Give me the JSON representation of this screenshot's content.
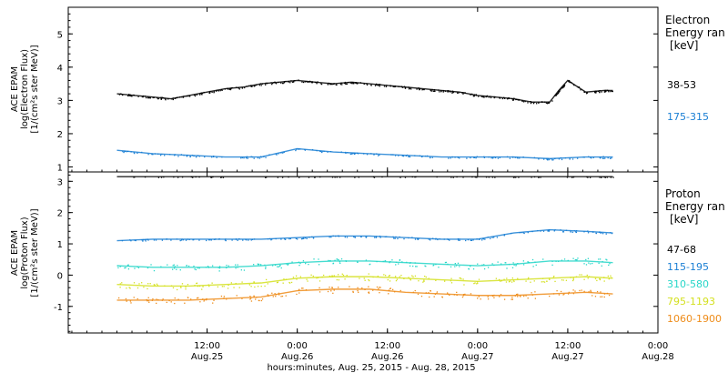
{
  "chart_data": [
    {
      "type": "scatter",
      "instrument_label": "ACE EPAM",
      "ylabel": "log(Electron Flux)",
      "yunits": "[1/(cm²s ster MeV)]",
      "ylim": [
        0.85,
        5.8
      ],
      "yticks": [
        1,
        2,
        3,
        4,
        5
      ],
      "legend_title": [
        "Electron",
        "Energy ran"
      ],
      "legend_units": "[keV]",
      "series": [
        {
          "name": "38-53",
          "color": "#000000",
          "x": [
            0,
            0.1,
            0.2,
            0.3,
            0.4,
            0.5,
            0.6,
            0.7,
            0.8,
            0.9,
            1.0,
            1.1,
            1.2,
            1.3,
            1.4,
            1.5,
            1.6,
            1.7,
            1.8,
            1.9,
            2.0,
            2.1,
            2.2,
            2.3,
            2.4,
            2.45,
            2.5,
            2.6,
            2.7,
            2.75
          ],
          "y": [
            3.2,
            3.15,
            3.1,
            3.05,
            3.15,
            3.25,
            3.35,
            3.4,
            3.5,
            3.55,
            3.6,
            3.55,
            3.5,
            3.55,
            3.5,
            3.45,
            3.4,
            3.35,
            3.3,
            3.25,
            3.15,
            3.1,
            3.05,
            2.95,
            2.95,
            3.3,
            3.6,
            3.25,
            3.3,
            3.3
          ]
        },
        {
          "name": "175-315",
          "color": "#1a7fd4",
          "x": [
            0,
            0.2,
            0.4,
            0.6,
            0.8,
            1.0,
            1.2,
            1.4,
            1.6,
            1.8,
            2.0,
            2.2,
            2.4,
            2.6,
            2.75
          ],
          "y": [
            1.5,
            1.4,
            1.35,
            1.3,
            1.3,
            1.55,
            1.45,
            1.4,
            1.35,
            1.3,
            1.3,
            1.3,
            1.25,
            1.3,
            1.3
          ]
        }
      ]
    },
    {
      "type": "scatter",
      "instrument_label": "ACE EPAM",
      "ylabel": "log(Proton Flux)",
      "yunits": "[1/(cm²s ster MeV)]",
      "ylim": [
        -1.85,
        3.3
      ],
      "yticks": [
        -1,
        0,
        1,
        2,
        3
      ],
      "legend_title": [
        "Proton",
        "Energy ran"
      ],
      "legend_units": "[keV]",
      "series": [
        {
          "name": "47-68",
          "color": "#000000",
          "x": [
            0,
            0.5,
            1.0,
            1.5,
            2.0,
            2.5,
            2.75
          ],
          "y": [
            3.15,
            3.15,
            3.15,
            3.15,
            3.15,
            3.15,
            3.15
          ]
        },
        {
          "name": "115-195",
          "color": "#1a7fd4",
          "x": [
            0,
            0.2,
            0.4,
            0.6,
            0.8,
            1.0,
            1.2,
            1.4,
            1.6,
            1.8,
            2.0,
            2.2,
            2.4,
            2.6,
            2.75
          ],
          "y": [
            1.1,
            1.15,
            1.15,
            1.15,
            1.15,
            1.2,
            1.25,
            1.25,
            1.2,
            1.15,
            1.15,
            1.35,
            1.45,
            1.4,
            1.35
          ]
        },
        {
          "name": "310-580",
          "color": "#26d6c8",
          "x": [
            0,
            0.2,
            0.4,
            0.6,
            0.8,
            1.0,
            1.2,
            1.4,
            1.6,
            1.8,
            2.0,
            2.2,
            2.4,
            2.6,
            2.75
          ],
          "y": [
            0.3,
            0.25,
            0.25,
            0.25,
            0.3,
            0.4,
            0.45,
            0.45,
            0.4,
            0.35,
            0.3,
            0.35,
            0.45,
            0.45,
            0.4
          ]
        },
        {
          "name": "795-1193",
          "color": "#d4e020",
          "x": [
            0,
            0.2,
            0.4,
            0.6,
            0.8,
            1.0,
            1.2,
            1.4,
            1.6,
            1.8,
            2.0,
            2.2,
            2.4,
            2.6,
            2.75
          ],
          "y": [
            -0.3,
            -0.35,
            -0.35,
            -0.3,
            -0.25,
            -0.1,
            -0.05,
            -0.05,
            -0.1,
            -0.15,
            -0.2,
            -0.15,
            -0.1,
            -0.05,
            -0.1
          ]
        },
        {
          "name": "1060-1900",
          "color": "#ee8c1a",
          "x": [
            0,
            0.2,
            0.4,
            0.6,
            0.8,
            1.0,
            1.2,
            1.4,
            1.6,
            1.8,
            2.0,
            2.2,
            2.4,
            2.6,
            2.75
          ],
          "y": [
            -0.8,
            -0.8,
            -0.8,
            -0.75,
            -0.7,
            -0.5,
            -0.45,
            -0.45,
            -0.55,
            -0.6,
            -0.65,
            -0.65,
            -0.6,
            -0.55,
            -0.6
          ]
        }
      ]
    }
  ],
  "x_axis": {
    "xlim": [
      -0.27,
      3.0
    ],
    "ticks": [
      {
        "x": 0.5,
        "time": "12:00",
        "date": "Aug.25"
      },
      {
        "x": 1.0,
        "time": "0:00",
        "date": "Aug.26"
      },
      {
        "x": 1.5,
        "time": "12:00",
        "date": "Aug.26"
      },
      {
        "x": 2.0,
        "time": "0:00",
        "date": "Aug.27"
      },
      {
        "x": 2.5,
        "time": "12:00",
        "date": "Aug.27"
      },
      {
        "x": 3.0,
        "time": "0:00",
        "date": "Aug.28"
      }
    ],
    "label": "hours:minutes, Aug. 25, 2015 - Aug. 28, 2015"
  }
}
